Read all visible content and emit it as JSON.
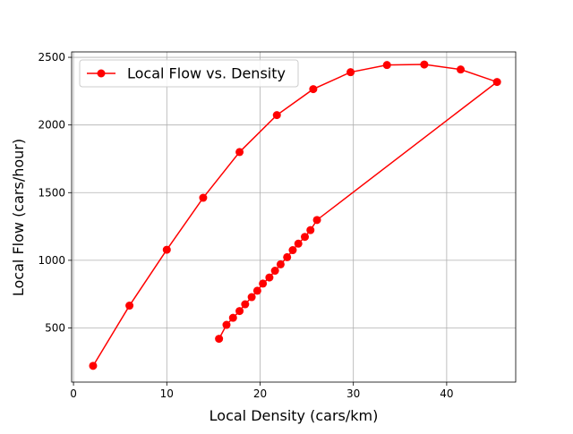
{
  "chart_data": {
    "type": "line",
    "title": "",
    "xlabel": "Local Density (cars/km)",
    "ylabel": "Local Flow (cars/hour)",
    "xlim": [
      -0.2,
      47.4
    ],
    "ylim": [
      100,
      2540
    ],
    "xticks": [
      0,
      10,
      20,
      30,
      40
    ],
    "yticks": [
      500,
      1000,
      1500,
      2000,
      2500
    ],
    "grid": true,
    "legend_position": "upper-left",
    "series": [
      {
        "name": "Local Flow vs. Density",
        "color": "#ff0000",
        "marker": "circle",
        "x": [
          2.1,
          6.0,
          10.0,
          13.9,
          17.8,
          21.8,
          25.7,
          29.7,
          33.6,
          37.6,
          41.5,
          45.4,
          26.1,
          25.4,
          24.8,
          24.1,
          23.5,
          22.9,
          22.2,
          21.6,
          21.0,
          20.3,
          19.7,
          19.1,
          18.4,
          17.8,
          17.1,
          16.4,
          15.6
        ],
        "y": [
          220,
          665,
          1078,
          1462,
          1800,
          2073,
          2265,
          2390,
          2443,
          2447,
          2410,
          2318,
          1298,
          1223,
          1173,
          1123,
          1075,
          1023,
          970,
          923,
          873,
          828,
          775,
          728,
          675,
          625,
          575,
          523,
          420
        ]
      }
    ]
  }
}
